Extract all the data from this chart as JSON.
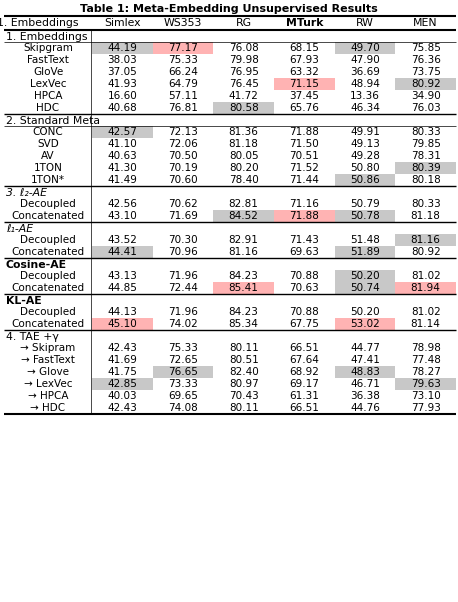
{
  "title": "Table 1: Meta-Embedding Unsupervised Results",
  "col_headers": [
    "1. Embeddings",
    "Simlex",
    "WS353",
    "RG",
    "MTurk",
    "RW",
    "MEN"
  ],
  "sections": [
    {
      "header": "1. Embeddings",
      "header_italic": false,
      "header_bold": false,
      "has_thin_line": true,
      "rows": [
        {
          "label": "Skipgram",
          "indent": false,
          "values": [
            "44.19",
            "77.17",
            "76.08",
            "68.15",
            "49.70",
            "75.85"
          ]
        },
        {
          "label": "FastText",
          "indent": false,
          "values": [
            "38.03",
            "75.33",
            "79.98",
            "67.93",
            "47.90",
            "76.36"
          ]
        },
        {
          "label": "GloVe",
          "indent": false,
          "values": [
            "37.05",
            "66.24",
            "76.95",
            "63.32",
            "36.69",
            "73.75"
          ]
        },
        {
          "label": "LexVec",
          "indent": false,
          "values": [
            "41.93",
            "64.79",
            "76.45",
            "71.15",
            "48.94",
            "80.92"
          ]
        },
        {
          "label": "HPCA",
          "indent": false,
          "values": [
            "16.60",
            "57.11",
            "41.72",
            "37.45",
            "13.36",
            "34.90"
          ]
        },
        {
          "label": "HDC",
          "indent": false,
          "values": [
            "40.68",
            "76.81",
            "80.58",
            "65.76",
            "46.34",
            "76.03"
          ]
        }
      ]
    },
    {
      "header": "2. Standard Meta",
      "header_italic": false,
      "header_bold": false,
      "has_thin_line": true,
      "rows": [
        {
          "label": "CONC",
          "indent": false,
          "values": [
            "42.57",
            "72.13",
            "81.36",
            "71.88",
            "49.91",
            "80.33"
          ]
        },
        {
          "label": "SVD",
          "indent": false,
          "values": [
            "41.10",
            "72.06",
            "81.18",
            "71.50",
            "49.13",
            "79.85"
          ]
        },
        {
          "label": "AV",
          "indent": false,
          "values": [
            "40.63",
            "70.50",
            "80.05",
            "70.51",
            "49.28",
            "78.31"
          ]
        },
        {
          "label": "1TON",
          "indent": false,
          "values": [
            "41.30",
            "70.19",
            "80.20",
            "71.52",
            "50.80",
            "80.39"
          ]
        },
        {
          "label": "1TON*",
          "indent": false,
          "values": [
            "41.49",
            "70.60",
            "78.40",
            "71.44",
            "50.86",
            "80.18"
          ]
        }
      ]
    },
    {
      "header": "3. ℓ₂-AE",
      "header_italic": true,
      "header_bold": false,
      "has_thin_line": false,
      "rows": [
        {
          "label": "Decoupled",
          "indent": false,
          "values": [
            "42.56",
            "70.62",
            "82.81",
            "71.16",
            "50.79",
            "80.33"
          ]
        },
        {
          "label": "Concatenated",
          "indent": false,
          "values": [
            "43.10",
            "71.69",
            "84.52",
            "71.88",
            "50.78",
            "81.18"
          ]
        }
      ]
    },
    {
      "header": "ℓ₁-AE",
      "header_italic": true,
      "header_bold": false,
      "has_thin_line": false,
      "rows": [
        {
          "label": "Decoupled",
          "indent": false,
          "values": [
            "43.52",
            "70.30",
            "82.91",
            "71.43",
            "51.48",
            "81.16"
          ]
        },
        {
          "label": "Concatenated",
          "indent": false,
          "values": [
            "44.41",
            "70.96",
            "81.16",
            "69.63",
            "51.89",
            "80.92"
          ]
        }
      ]
    },
    {
      "header": "Cosine-AE",
      "header_italic": false,
      "header_bold": true,
      "has_thin_line": false,
      "rows": [
        {
          "label": "Decoupled",
          "indent": false,
          "values": [
            "43.13",
            "71.96",
            "84.23",
            "70.88",
            "50.20",
            "81.02"
          ]
        },
        {
          "label": "Concatenated",
          "indent": false,
          "values": [
            "44.85",
            "72.44",
            "85.41",
            "70.63",
            "50.74",
            "81.94"
          ]
        }
      ]
    },
    {
      "header": "KL-AE",
      "header_italic": false,
      "header_bold": true,
      "has_thin_line": false,
      "rows": [
        {
          "label": "Decoupled",
          "indent": false,
          "values": [
            "44.13",
            "71.96",
            "84.23",
            "70.88",
            "50.20",
            "81.02"
          ]
        },
        {
          "label": "Concatenated",
          "indent": false,
          "values": [
            "45.10",
            "74.02",
            "85.34",
            "67.75",
            "53.02",
            "81.14"
          ]
        }
      ]
    },
    {
      "header": "4. TAE +γ",
      "header_italic": false,
      "header_bold": false,
      "has_thin_line": false,
      "rows": [
        {
          "label": "→ Skipram",
          "indent": true,
          "values": [
            "42.43",
            "75.33",
            "80.11",
            "66.51",
            "44.77",
            "78.98"
          ]
        },
        {
          "label": "→ FastText",
          "indent": true,
          "values": [
            "41.69",
            "72.65",
            "80.51",
            "67.64",
            "47.41",
            "77.48"
          ]
        },
        {
          "label": "→ Glove",
          "indent": true,
          "values": [
            "41.75",
            "76.65",
            "82.40",
            "68.92",
            "48.83",
            "78.27"
          ]
        },
        {
          "label": "→ LexVec",
          "indent": true,
          "values": [
            "42.85",
            "73.33",
            "80.97",
            "69.17",
            "46.71",
            "79.63"
          ]
        },
        {
          "label": "→ HPCA",
          "indent": true,
          "values": [
            "40.03",
            "69.65",
            "70.43",
            "61.31",
            "36.38",
            "73.10"
          ]
        },
        {
          "label": "→ HDC",
          "indent": true,
          "values": [
            "42.43",
            "74.08",
            "80.11",
            "66.51",
            "44.76",
            "77.93"
          ]
        }
      ]
    }
  ],
  "cell_colors": {
    "0,0,0": "#c8c8c8",
    "0,0,1": "#ffb3b3",
    "0,0,4": "#c8c8c8",
    "0,3,3": "#ffb3b3",
    "0,3,5": "#c8c8c8",
    "0,5,2": "#c8c8c8",
    "1,0,0": "#c8c8c8",
    "1,3,5": "#c8c8c8",
    "1,4,4": "#c8c8c8",
    "2,1,2": "#c8c8c8",
    "2,1,3": "#ffb3b3",
    "2,1,4": "#c8c8c8",
    "3,0,5": "#c8c8c8",
    "3,1,0": "#c8c8c8",
    "3,1,4": "#c8c8c8",
    "4,0,4": "#c8c8c8",
    "4,1,2": "#ffb3b3",
    "4,1,4": "#c8c8c8",
    "4,1,5": "#ffb3b3",
    "5,1,0": "#ffb3b3",
    "5,1,4": "#ffb3b3",
    "6,2,1": "#c8c8c8",
    "6,2,4": "#c8c8c8",
    "6,3,0": "#c8c8c8",
    "6,3,5": "#c8c8c8"
  },
  "bg_color": "#ffffff",
  "font_size": 7.5,
  "header_font_size": 7.8,
  "title_font_size": 8.0
}
